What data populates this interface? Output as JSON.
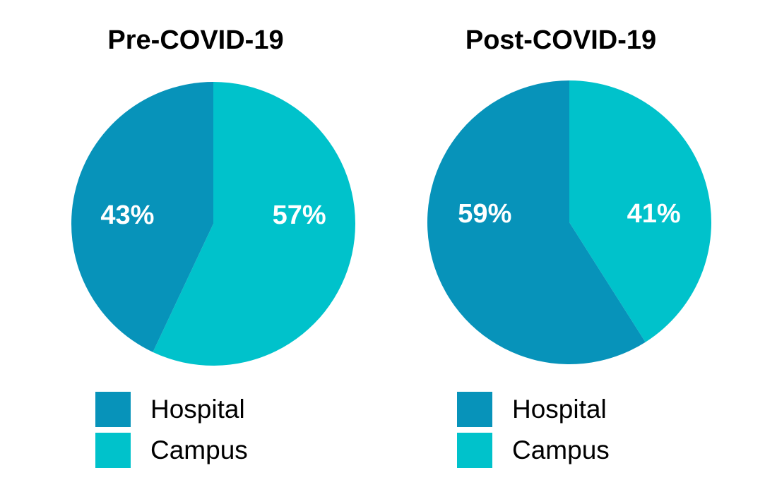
{
  "chart_data": [
    {
      "type": "pie",
      "title": "Pre-COVID-19",
      "categories": [
        "Hospital",
        "Campus"
      ],
      "values": [
        43,
        57
      ],
      "labels": [
        "43%",
        "57%"
      ],
      "colors": [
        "#0793ba",
        "#00c2cb"
      ],
      "legend": "bottom"
    },
    {
      "type": "pie",
      "title": "Post-COVID-19",
      "categories": [
        "Hospital",
        "Campus"
      ],
      "values": [
        59,
        41
      ],
      "labels": [
        "59%",
        "41%"
      ],
      "colors": [
        "#0793ba",
        "#00c2cb"
      ],
      "legend": "bottom"
    }
  ]
}
